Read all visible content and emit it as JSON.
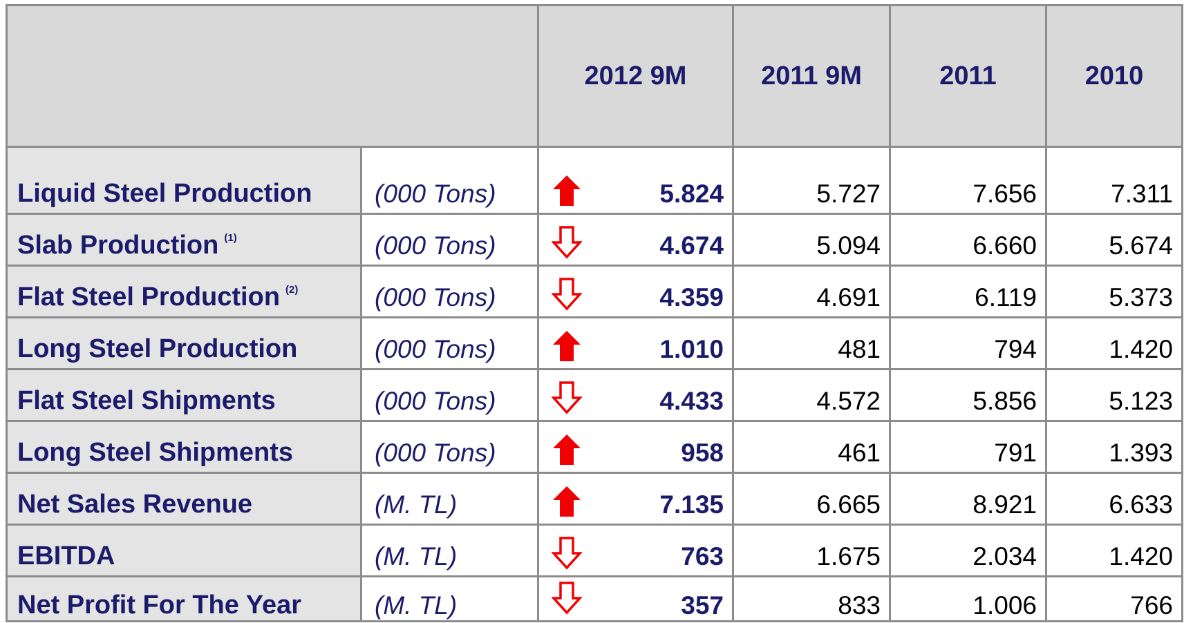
{
  "table": {
    "header": [
      "2012 9M",
      "2011 9M",
      "2011",
      "2010"
    ],
    "rows": [
      {
        "label": "Liquid Steel Production",
        "unit": "(000 Tons)",
        "values": [
          "5.824",
          "5.727",
          "7.656",
          "7.311"
        ]
      },
      {
        "label": "Slab Production",
        "note": "(1)",
        "unit": "(000 Tons)",
        "values": [
          "4.674",
          "5.094",
          "6.660",
          "5.674"
        ]
      },
      {
        "label": "Flat Steel Production",
        "note": "(2)",
        "unit": "(000 Tons)",
        "values": [
          "4.359",
          "4.691",
          "6.119",
          "5.373"
        ]
      },
      {
        "label": "Long Steel Production",
        "unit": "(000 Tons)",
        "values": [
          "1.010",
          "481",
          "794",
          "1.420"
        ]
      },
      {
        "label": "Flat Steel Shipments",
        "unit": "(000 Tons)",
        "values": [
          "4.433",
          "4.572",
          "5.856",
          "5.123"
        ]
      },
      {
        "label": "Long Steel Shipments",
        "unit": "(000 Tons)",
        "values": [
          "958",
          "461",
          "791",
          "1.393"
        ]
      },
      {
        "label": "Net Sales Revenue",
        "unit": "(M. TL)",
        "values": [
          "7.135",
          "6.665",
          "8.921",
          "6.633"
        ]
      },
      {
        "label": "EBITDA",
        "unit": "(M. TL)",
        "values": [
          "763",
          "1.675",
          "2.034",
          "1.420"
        ]
      },
      {
        "label": "Net Profit For The Year",
        "unit": "(M. TL)",
        "values": [
          "357",
          "833",
          "1.006",
          "766"
        ]
      }
    ]
  }
}
